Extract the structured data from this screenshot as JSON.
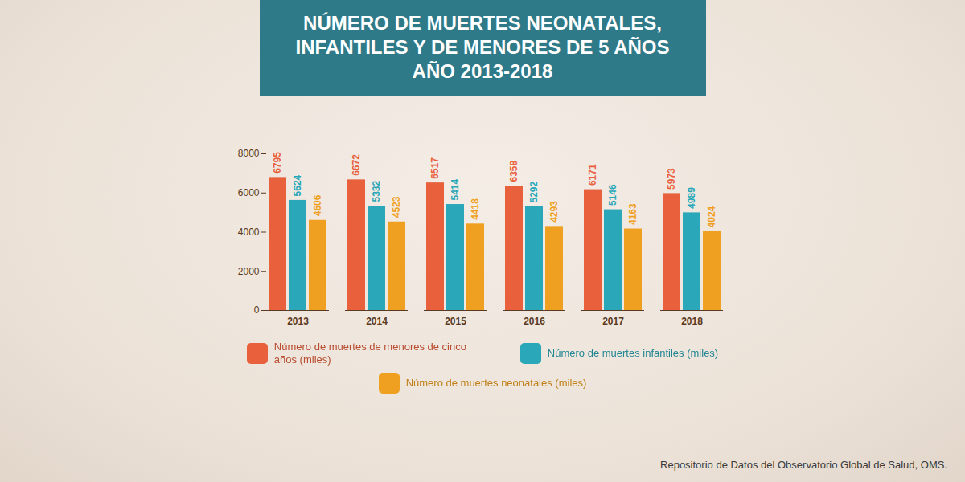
{
  "chart_data": {
    "type": "bar",
    "title": "NÚMERO DE MUERTES NEONATALES, INFANTILES Y DE MENORES DE 5 AÑOS",
    "subtitle": "AÑO 2013-2018",
    "caption": "Repositorio de Datos del Observatorio Global de Salud, OMS.",
    "categories": [
      "2013",
      "2014",
      "2015",
      "2016",
      "2017",
      "2018"
    ],
    "series": [
      {
        "name": "Número de muertes de menores de cinco años (miles)",
        "color": "#e8603c",
        "values": [
          6795,
          6672,
          6517,
          6358,
          6171,
          5973
        ]
      },
      {
        "name": "Número de muertes infantiles (miles)",
        "color": "#2aa7b8",
        "values": [
          5624,
          5332,
          5414,
          5292,
          5146,
          4989
        ]
      },
      {
        "name": "Número de muertes neonatales (miles)",
        "color": "#f0a020",
        "values": [
          4606,
          4523,
          4418,
          4293,
          4163,
          4024
        ]
      }
    ],
    "ylim": [
      0,
      8000
    ],
    "yticks": [
      0,
      2000,
      4000,
      6000,
      8000
    ],
    "grid": false,
    "data_labels": true,
    "legend": "bottom"
  }
}
